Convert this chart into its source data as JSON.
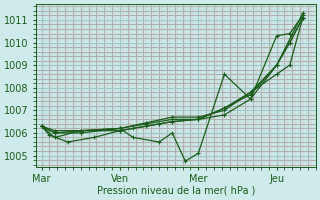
{
  "title": "Pression niveau de la mer( hPa )",
  "bg_color": "#ceeaea",
  "grid_major_color": "#9ec8c8",
  "grid_minor_v_color": "#e0b8b8",
  "grid_minor_h_color": "#b8d8d8",
  "line_color": "#1a5c1a",
  "ylim": [
    1004.5,
    1011.7
  ],
  "yticks": [
    1005,
    1006,
    1007,
    1008,
    1009,
    1010,
    1011
  ],
  "xtick_labels": [
    "Mar",
    "Ven",
    "Mer",
    "Jeu"
  ],
  "xtick_positions": [
    0,
    3,
    6,
    9
  ],
  "xlim": [
    -0.2,
    10.5
  ],
  "series": [
    [
      0,
      1006.3,
      0.3,
      1005.9,
      1.0,
      1005.6,
      2.0,
      1005.8,
      3.0,
      1006.1,
      3.5,
      1006.2,
      4.5,
      1006.4,
      5.0,
      1006.5,
      6.0,
      1006.6,
      7.0,
      1007.1,
      8.0,
      1007.7,
      9.0,
      1009.0,
      9.5,
      1010.0,
      10.0,
      1011.1
    ],
    [
      0,
      1006.3,
      0.5,
      1005.8,
      1.5,
      1006.1,
      3.0,
      1006.1,
      4.0,
      1006.3,
      5.0,
      1006.5,
      6.0,
      1006.6,
      7.0,
      1006.8,
      8.0,
      1007.5,
      9.0,
      1010.3,
      9.5,
      1010.4,
      10.0,
      1011.2
    ],
    [
      0,
      1006.3,
      0.5,
      1006.0,
      1.5,
      1006.1,
      3.0,
      1006.2,
      4.0,
      1006.4,
      5.0,
      1006.6,
      6.0,
      1006.6,
      7.0,
      1007.1,
      8.0,
      1007.8,
      9.0,
      1009.0,
      9.5,
      1010.0,
      10.0,
      1011.1
    ],
    [
      0,
      1006.3,
      0.5,
      1006.0,
      1.5,
      1006.0,
      3.0,
      1006.2,
      3.5,
      1005.8,
      4.5,
      1005.6,
      5.0,
      1006.0,
      5.5,
      1004.75,
      6.0,
      1005.1,
      7.0,
      1008.6,
      8.0,
      1007.5,
      9.0,
      1009.0,
      10.0,
      1011.3
    ],
    [
      0,
      1006.3,
      0.5,
      1006.1,
      1.5,
      1006.1,
      3.0,
      1006.2,
      4.0,
      1006.45,
      5.0,
      1006.7,
      6.0,
      1006.7,
      7.0,
      1007.0,
      8.0,
      1007.8,
      9.0,
      1008.6,
      9.5,
      1009.0,
      10.0,
      1011.1
    ]
  ],
  "marker_size": 2.2,
  "line_width": 0.9
}
